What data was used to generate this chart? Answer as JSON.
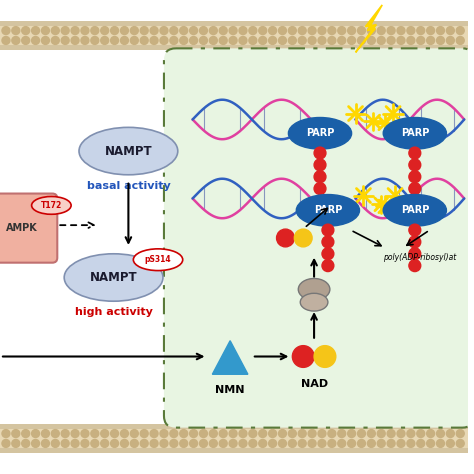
{
  "bg_color": "#ffffff",
  "membrane_color": "#d4c4a0",
  "membrane_inner_color": "#e8d8b4",
  "cell_bg": "#e8f5e2",
  "cell_border": "#5a7a3a",
  "nampt_ellipse_color": "#c8d4e8",
  "nampt_text": "NAMPT",
  "basal_text": "basal activity",
  "basal_color": "#2255bb",
  "high_text": "high activity",
  "high_color": "#cc0000",
  "ps314_color": "#cc0000",
  "ps314_text": "pS314",
  "nmn_text": "NMN",
  "nad_text": "NAD",
  "parp_color": "#1a5fa8",
  "parp_text": "PARP",
  "poly_text": "poly(ADP-ribosyl)at",
  "lightning_color": "#ffd700",
  "ampk_color": "#e8b0a0",
  "t172_text": "T172",
  "t172_color": "#cc0000",
  "nmn_color": "#3399cc",
  "red_ball": "#dd2222",
  "yellow_ball": "#f5c518"
}
